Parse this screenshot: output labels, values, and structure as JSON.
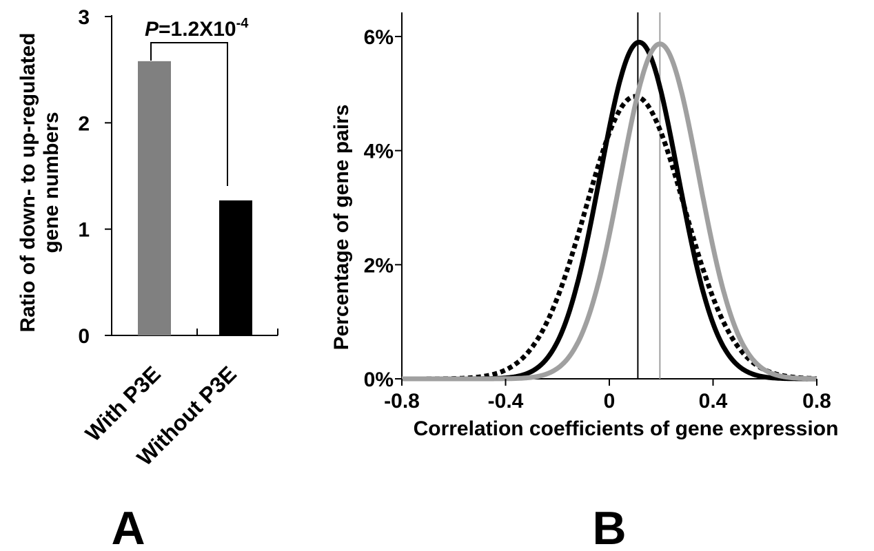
{
  "chart_data": [
    {
      "panel": "A",
      "type": "bar",
      "categories": [
        "With P3E",
        "Without P3E"
      ],
      "values": [
        2.58,
        1.27
      ],
      "colors": [
        "#808080",
        "#000000"
      ],
      "ylabel_line1": "Ratio of down- to up-regulated",
      "ylabel_line2": "gene numbers",
      "xlabel": "",
      "ylim": [
        0,
        3
      ],
      "yticks": [
        "0",
        "1",
        "2",
        "3"
      ],
      "annotation": {
        "p_letter": "P",
        "p_rest": "=1.2X10",
        "p_exp": "-4"
      },
      "panel_label": "A"
    },
    {
      "panel": "B",
      "type": "line",
      "xlabel": "Correlation coefficients of gene expression",
      "ylabel": "Percentage of gene pairs",
      "xlim": [
        -0.8,
        0.8
      ],
      "ylim": [
        0,
        6
      ],
      "xticks": [
        "-0.8",
        "-0.4",
        "0",
        "0.4",
        "0.8"
      ],
      "yticks": [
        "0%",
        "2%",
        "4%",
        "6%"
      ],
      "series": [
        {
          "style": "dotted",
          "color": "#000000",
          "mean": 0.1,
          "sd": 0.19,
          "peak": 4.95
        },
        {
          "style": "solid",
          "color": "#000000",
          "mean": 0.115,
          "sd": 0.15,
          "peak": 5.9
        },
        {
          "style": "solid",
          "color": "#a0a0a0",
          "mean": 0.195,
          "sd": 0.15,
          "peak": 5.87
        }
      ],
      "reference_lines": [
        {
          "x": 0.11,
          "color": "#000000"
        },
        {
          "x": 0.195,
          "color": "#a0a0a0"
        }
      ],
      "panel_label": "B"
    }
  ]
}
